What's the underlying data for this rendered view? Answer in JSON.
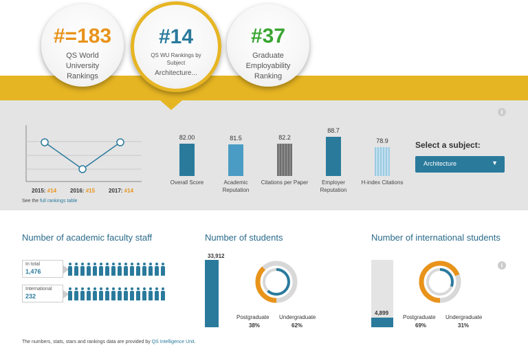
{
  "badges": [
    {
      "rank": "#=183",
      "label": "QS World University Rankings"
    },
    {
      "rank": "#14",
      "label": "QS WU Rankings by Subject",
      "label2": "Architecture..."
    },
    {
      "rank": "#37",
      "label": "Graduate Employability Ranking"
    }
  ],
  "colors": {
    "gold": "#e6b523",
    "teal": "#2a7a9c",
    "orange": "#e8931a",
    "green": "#3aa532",
    "panel": "#e4e4e4"
  },
  "rank_history": {
    "years": [
      {
        "year": "2015:",
        "rank": "#14"
      },
      {
        "year": "2016:",
        "rank": "#15"
      },
      {
        "year": "2017:",
        "rank": "#14"
      }
    ],
    "link_prefix": "See the",
    "link_text": "full rankings table"
  },
  "chart_data": {
    "type": "bar",
    "categories": [
      "Overall Score",
      "Academic Reputation",
      "Citations per Paper",
      "Employer Reputation",
      "H-index Citations"
    ],
    "values": [
      82.0,
      81.5,
      82.2,
      88.7,
      78.9
    ],
    "value_labels": [
      "82.00",
      "81.5",
      "82.2",
      "88.7",
      "78.9"
    ]
  },
  "subject": {
    "title": "Select a subject:",
    "selected": "Architecture",
    "chevron_icon": "chevron-down-icon"
  },
  "faculty": {
    "title": "Number of academic faculty staff",
    "total_label": "In total",
    "total_value": "1,476",
    "intl_label": "International",
    "intl_value": "232",
    "total_fraction": 1.0,
    "intl_fraction": 1.0
  },
  "students": {
    "title": "Number of students",
    "total": "33,912",
    "postgraduate_label": "Postgraduate",
    "postgraduate_pct": "38%",
    "undergraduate_label": "Undergraduate",
    "undergraduate_pct": "62%",
    "postgraduate_fraction": 0.38
  },
  "intl_students": {
    "title": "Number of international students",
    "total": "4,899",
    "postgraduate_label": "Postgraduate",
    "postgraduate_pct": "69%",
    "undergraduate_label": "Undergraduate",
    "undergraduate_pct": "31%",
    "postgraduate_fraction": 0.69,
    "fill_fraction": 0.14
  },
  "footer": {
    "text": "The numbers, stats, stars and rankings data are provided by",
    "link": "QS Intelligence Unit",
    "end": "."
  }
}
